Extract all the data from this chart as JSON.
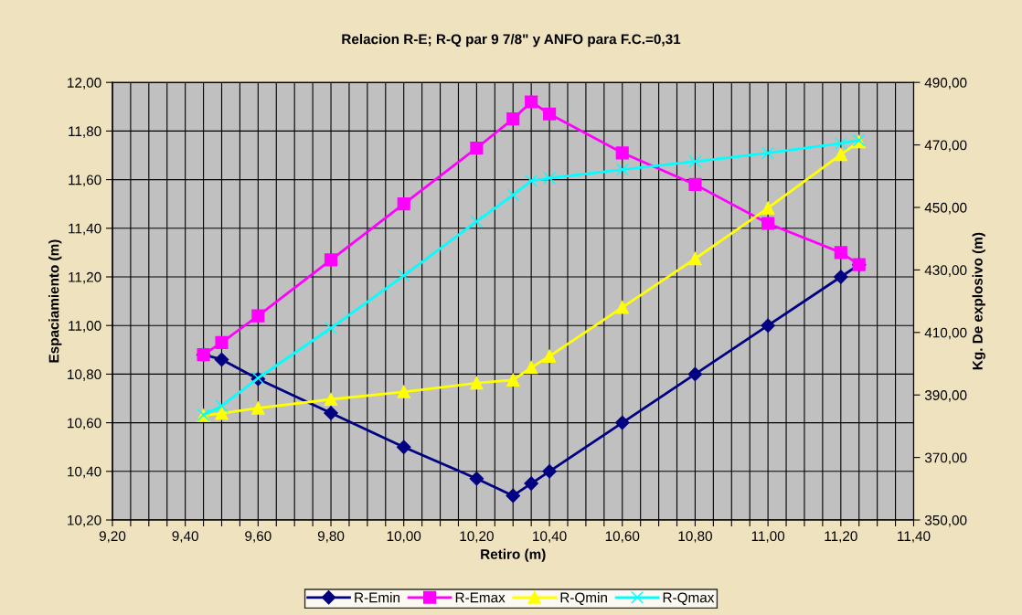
{
  "chart_data": {
    "type": "line",
    "title": "Relacion R-E; R-Q par 9 7/8\" y ANFO para F.C.=0,31",
    "xlabel": "Retiro (m)",
    "ylabel": "Espaciamiento (m)",
    "y2label": "Kg. De explosivo (m)",
    "x": [
      9.45,
      9.5,
      9.6,
      9.8,
      10.0,
      10.2,
      10.3,
      10.35,
      10.4,
      10.6,
      10.8,
      11.0,
      11.2,
      11.25
    ],
    "series": [
      {
        "name": "R-Emin",
        "color": "#000080",
        "marker": "diamond",
        "values": [
          10.88,
          10.86,
          10.78,
          10.64,
          10.5,
          10.37,
          10.3,
          10.35,
          10.4,
          10.6,
          10.8,
          11.0,
          11.2,
          11.25
        ]
      },
      {
        "name": "R-Emax",
        "color": "#ff00ff",
        "marker": "square",
        "values": [
          10.88,
          10.93,
          11.04,
          11.27,
          11.5,
          11.73,
          11.85,
          11.92,
          11.87,
          11.71,
          11.58,
          11.42,
          11.3,
          11.25
        ]
      },
      {
        "name": "R-Qmin",
        "color": "#ffff00",
        "marker": "triangle",
        "axis": "y2",
        "values": [
          383.4,
          384.1,
          385.8,
          388.6,
          391.0,
          393.8,
          394.8,
          398.8,
          402.4,
          418.0,
          433.6,
          449.8,
          466.9,
          471.0
        ]
      },
      {
        "name": "R-Qmax",
        "color": "#00ffff",
        "marker": "cross",
        "axis": "y2",
        "values": [
          383.6,
          386.5,
          395.4,
          411.4,
          428.2,
          445.5,
          454.0,
          458.5,
          459.4,
          462.1,
          464.7,
          467.4,
          470.5,
          471.5
        ]
      }
    ],
    "xlim": [
      9.2,
      11.4
    ],
    "xticks": [
      {
        "value": 9.2,
        "label": "9,20"
      },
      {
        "value": 9.25,
        "label": null
      },
      {
        "value": 9.3,
        "label": null
      },
      {
        "value": 9.35,
        "label": null
      },
      {
        "value": 9.4,
        "label": "9,40"
      },
      {
        "value": 9.45,
        "label": null
      },
      {
        "value": 9.5,
        "label": null
      },
      {
        "value": 9.55,
        "label": null
      },
      {
        "value": 9.6,
        "label": "9,60"
      },
      {
        "value": 9.65,
        "label": null
      },
      {
        "value": 9.7,
        "label": null
      },
      {
        "value": 9.75,
        "label": null
      },
      {
        "value": 9.8,
        "label": "9,80"
      },
      {
        "value": 9.85,
        "label": null
      },
      {
        "value": 9.9,
        "label": null
      },
      {
        "value": 9.95,
        "label": null
      },
      {
        "value": 10.0,
        "label": "10,00"
      },
      {
        "value": 10.05,
        "label": null
      },
      {
        "value": 10.1,
        "label": null
      },
      {
        "value": 10.15,
        "label": null
      },
      {
        "value": 10.2,
        "label": "10,20"
      },
      {
        "value": 10.25,
        "label": null
      },
      {
        "value": 10.3,
        "label": null
      },
      {
        "value": 10.35,
        "label": null
      },
      {
        "value": 10.4,
        "label": "10,40"
      },
      {
        "value": 10.45,
        "label": null
      },
      {
        "value": 10.5,
        "label": null
      },
      {
        "value": 10.55,
        "label": null
      },
      {
        "value": 10.6,
        "label": "10,60"
      },
      {
        "value": 10.65,
        "label": null
      },
      {
        "value": 10.7,
        "label": null
      },
      {
        "value": 10.75,
        "label": null
      },
      {
        "value": 10.8,
        "label": "10,80"
      },
      {
        "value": 10.85,
        "label": null
      },
      {
        "value": 10.9,
        "label": null
      },
      {
        "value": 10.95,
        "label": null
      },
      {
        "value": 11.0,
        "label": "11,00"
      },
      {
        "value": 11.05,
        "label": null
      },
      {
        "value": 11.1,
        "label": null
      },
      {
        "value": 11.15,
        "label": null
      },
      {
        "value": 11.2,
        "label": "11,20"
      },
      {
        "value": 11.25,
        "label": null
      },
      {
        "value": 11.3,
        "label": null
      },
      {
        "value": 11.35,
        "label": null
      },
      {
        "value": 11.4,
        "label": "11,40"
      }
    ],
    "ylim": [
      10.2,
      12.0
    ],
    "yticks": [
      {
        "value": 10.2,
        "label": "10,20"
      },
      {
        "value": 10.4,
        "label": "10,40"
      },
      {
        "value": 10.6,
        "label": "10,60"
      },
      {
        "value": 10.8,
        "label": "10,80"
      },
      {
        "value": 11.0,
        "label": "11,00"
      },
      {
        "value": 11.2,
        "label": "11,20"
      },
      {
        "value": 11.4,
        "label": "11,40"
      },
      {
        "value": 11.6,
        "label": "11,60"
      },
      {
        "value": 11.8,
        "label": "11,80"
      },
      {
        "value": 12.0,
        "label": "12,00"
      }
    ],
    "y2lim": [
      350,
      490
    ],
    "y2ticks": [
      {
        "value": 350,
        "label": "350,00"
      },
      {
        "value": 370,
        "label": "370,00"
      },
      {
        "value": 390,
        "label": "390,00"
      },
      {
        "value": 410,
        "label": "410,00"
      },
      {
        "value": 430,
        "label": "430,00"
      },
      {
        "value": 450,
        "label": "450,00"
      },
      {
        "value": 470,
        "label": "470,00"
      },
      {
        "value": 490,
        "label": "490,00"
      }
    ],
    "grid": true,
    "legend": "bottom",
    "line_style": "solid"
  }
}
